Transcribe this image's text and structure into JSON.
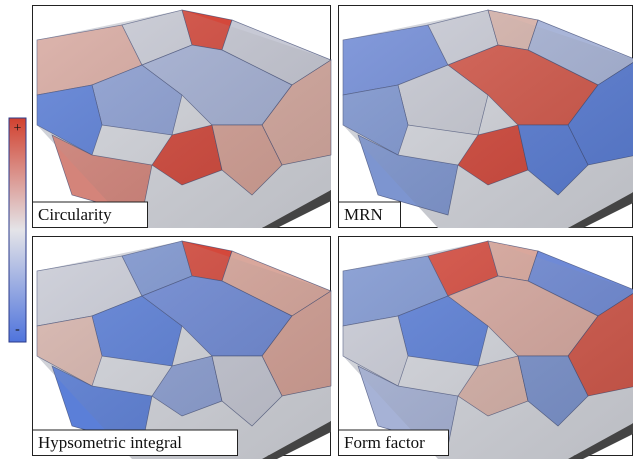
{
  "colorbar": {
    "max_label": "+",
    "min_label": "-"
  },
  "panels": [
    {
      "label": "Circularity"
    },
    {
      "label": "MRN"
    },
    {
      "label": "Hypsometric integral"
    },
    {
      "label": "Form factor"
    }
  ]
}
